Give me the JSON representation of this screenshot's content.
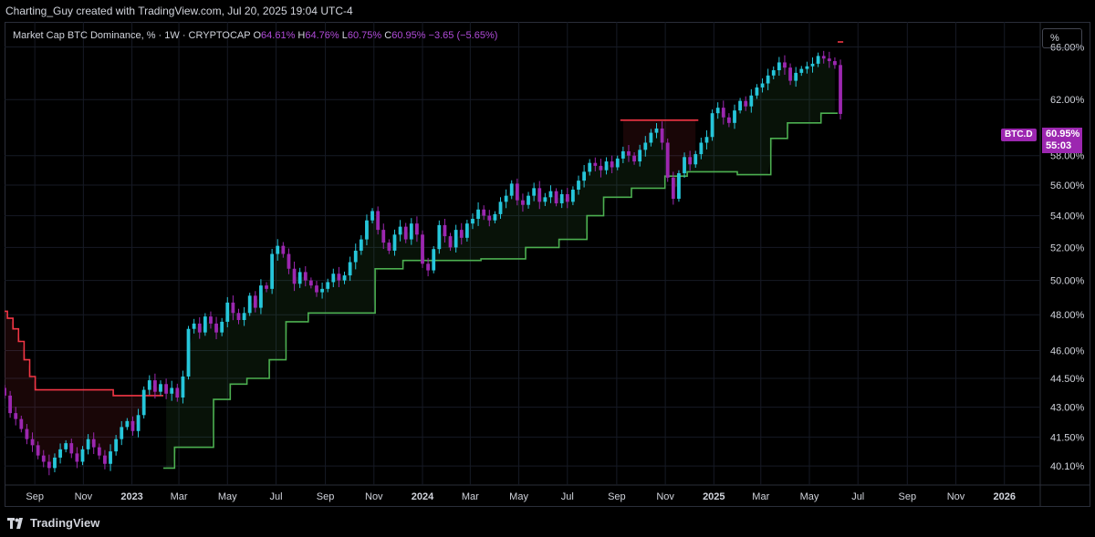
{
  "header": {
    "attribution": "Charting_Guy created with TradingView.com, Jul 20, 2025 19:04 UTC-4"
  },
  "legend": {
    "symbol": "Market Cap BTC Dominance, % · 1W · CRYPTOCAP",
    "o_label": "O",
    "o_value": "64.61%",
    "h_label": "H",
    "h_value": "64.76%",
    "l_label": "L",
    "l_value": "60.75%",
    "c_label": "C",
    "c_value": "60.95%",
    "change": "−3.65 (−5.65%)"
  },
  "scale_button": {
    "label": "%"
  },
  "price_badge": {
    "symbol": "BTC.D",
    "price": "60.95%",
    "countdown": "55:03"
  },
  "footer": {
    "brand": "TradingView"
  },
  "colors": {
    "bull": "#26c6da",
    "bear": "#9c27b0",
    "support": "#4caf50",
    "resistance": "#f23645"
  },
  "chart_data": {
    "type": "candlestick",
    "y_ticks": [
      {
        "v": 40.1,
        "label": "40.10%"
      },
      {
        "v": 41.5,
        "label": "41.50%"
      },
      {
        "v": 43.0,
        "label": "43.00%"
      },
      {
        "v": 44.5,
        "label": "44.50%"
      },
      {
        "v": 46.0,
        "label": "46.00%"
      },
      {
        "v": 48.0,
        "label": "48.00%"
      },
      {
        "v": 50.0,
        "label": "50.00%"
      },
      {
        "v": 52.0,
        "label": "52.00%"
      },
      {
        "v": 54.0,
        "label": "54.00%"
      },
      {
        "v": 56.0,
        "label": "56.00%"
      },
      {
        "v": 58.0,
        "label": "58.00%"
      },
      {
        "v": 62.0,
        "label": "62.00%"
      },
      {
        "v": 66.0,
        "label": "66.00%"
      }
    ],
    "y_scale": "log",
    "y_range": [
      39.2,
      68.0
    ],
    "x_range": [
      "2022-07-25",
      "2026-02-15"
    ],
    "x_ticks": [
      {
        "date": "2022-09-01",
        "label": "Sep"
      },
      {
        "date": "2022-11-01",
        "label": "Nov"
      },
      {
        "date": "2023-01-01",
        "label": "2023",
        "bold": true
      },
      {
        "date": "2023-03-01",
        "label": "Mar"
      },
      {
        "date": "2023-05-01",
        "label": "May"
      },
      {
        "date": "2023-07-01",
        "label": "Jul"
      },
      {
        "date": "2023-09-01",
        "label": "Sep"
      },
      {
        "date": "2023-11-01",
        "label": "Nov"
      },
      {
        "date": "2024-01-01",
        "label": "2024",
        "bold": true
      },
      {
        "date": "2024-03-01",
        "label": "Mar"
      },
      {
        "date": "2024-05-01",
        "label": "May"
      },
      {
        "date": "2024-07-01",
        "label": "Jul"
      },
      {
        "date": "2024-09-01",
        "label": "Sep"
      },
      {
        "date": "2024-11-01",
        "label": "Nov"
      },
      {
        "date": "2025-01-01",
        "label": "2025",
        "bold": true
      },
      {
        "date": "2025-03-01",
        "label": "Mar"
      },
      {
        "date": "2025-05-01",
        "label": "May"
      },
      {
        "date": "2025-07-01",
        "label": "Jul"
      },
      {
        "date": "2025-09-01",
        "label": "Sep"
      },
      {
        "date": "2025-11-01",
        "label": "Nov"
      },
      {
        "date": "2026-01-01",
        "label": "2026",
        "bold": true
      }
    ],
    "start_date": "2022-07-25",
    "interval_days": 7,
    "closes": [
      43.6,
      42.7,
      42.4,
      41.9,
      41.4,
      41.1,
      40.6,
      40.3,
      40.0,
      40.5,
      40.9,
      41.2,
      40.7,
      40.3,
      40.9,
      41.4,
      41.0,
      40.6,
      40.2,
      40.8,
      41.4,
      42.0,
      42.3,
      41.8,
      42.6,
      43.9,
      44.4,
      43.8,
      44.2,
      43.7,
      44.0,
      43.5,
      44.6,
      47.2,
      47.5,
      47.0,
      47.9,
      47.5,
      47.0,
      47.6,
      48.7,
      48.1,
      47.7,
      48.1,
      49.1,
      48.4,
      49.7,
      49.5,
      51.6,
      52.1,
      51.6,
      50.7,
      49.8,
      50.5,
      50.0,
      49.7,
      49.3,
      49.5,
      49.9,
      50.4,
      50.0,
      50.3,
      51.1,
      51.8,
      52.5,
      53.7,
      54.3,
      53.1,
      52.3,
      51.8,
      52.8,
      53.3,
      52.5,
      53.5,
      52.8,
      51.0,
      50.6,
      51.9,
      53.4,
      52.7,
      52.0,
      53.1,
      52.6,
      53.5,
      53.8,
      54.4,
      54.0,
      53.7,
      54.1,
      54.9,
      55.3,
      56.1,
      55.0,
      54.7,
      55.3,
      55.8,
      54.9,
      55.2,
      55.6,
      54.8,
      55.4,
      54.9,
      55.7,
      56.3,
      56.9,
      57.5,
      57.3,
      57.0,
      57.6,
      57.2,
      57.8,
      58.3,
      58.0,
      57.6,
      58.4,
      58.9,
      59.6,
      59.9,
      58.9,
      56.5,
      55.1,
      56.8,
      57.9,
      57.4,
      58.1,
      58.9,
      59.3,
      61.0,
      61.4,
      60.7,
      60.3,
      61.2,
      61.9,
      61.5,
      62.3,
      62.9,
      63.2,
      63.8,
      64.2,
      64.8,
      64.4,
      63.4,
      64.0,
      64.3,
      64.5,
      64.7,
      65.3,
      65.1,
      64.9,
      64.6,
      60.95
    ],
    "opens_first": 44.0,
    "resistance": [
      {
        "from": 0,
        "to": 5,
        "values": [
          48.2,
          47.8,
          47.2,
          46.5,
          45.5,
          44.6
        ]
      },
      {
        "from": 6,
        "to": 19,
        "value": 43.9
      },
      {
        "from": 20,
        "to": 28,
        "value": 43.6
      },
      {
        "from": 111,
        "to": 124,
        "value": 60.5
      },
      {
        "from": 150,
        "to": 150,
        "value": 66.4
      }
    ],
    "support": [
      {
        "from": 29,
        "to": 30,
        "value": 40.0
      },
      {
        "from": 31,
        "to": 34,
        "value": 41.0
      },
      {
        "from": 35,
        "to": 37,
        "value": 41.0
      },
      {
        "from": 38,
        "to": 40,
        "value": 43.4
      },
      {
        "from": 41,
        "to": 43,
        "value": 44.2
      },
      {
        "from": 44,
        "to": 47,
        "value": 44.5
      },
      {
        "from": 48,
        "to": 50,
        "value": 45.5
      },
      {
        "from": 51,
        "to": 54,
        "value": 47.6
      },
      {
        "from": 55,
        "to": 66,
        "value": 48.1
      },
      {
        "from": 67,
        "to": 71,
        "value": 50.7
      },
      {
        "from": 72,
        "to": 85,
        "value": 51.2
      },
      {
        "from": 86,
        "to": 93,
        "value": 51.3
      },
      {
        "from": 94,
        "to": 99,
        "value": 52.0
      },
      {
        "from": 100,
        "to": 104,
        "value": 52.5
      },
      {
        "from": 105,
        "to": 107,
        "value": 54.0
      },
      {
        "from": 108,
        "to": 112,
        "value": 55.2
      },
      {
        "from": 113,
        "to": 118,
        "value": 55.8
      },
      {
        "from": 119,
        "to": 122,
        "value": 56.6
      },
      {
        "from": 123,
        "to": 131,
        "value": 56.9
      },
      {
        "from": 132,
        "to": 137,
        "value": 56.7
      },
      {
        "from": 138,
        "to": 140,
        "value": 59.2
      },
      {
        "from": 141,
        "to": 146,
        "value": 60.3
      },
      {
        "from": 147,
        "to": 149,
        "value": 61.0
      }
    ]
  }
}
